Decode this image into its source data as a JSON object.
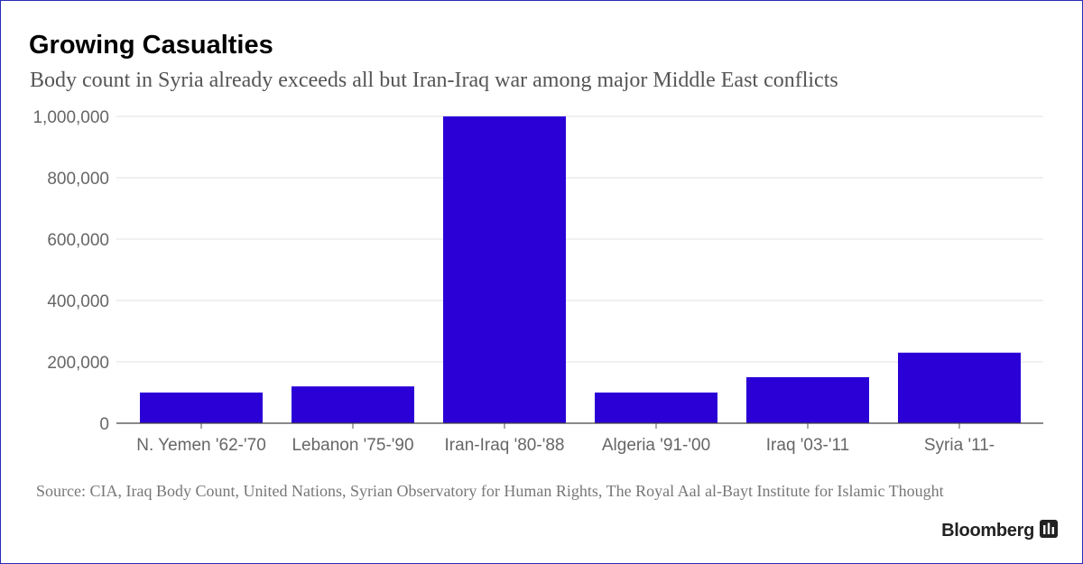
{
  "chart_data": {
    "type": "bar",
    "title": "Growing Casualties",
    "subtitle": "Body count in Syria already exceeds all but Iran-Iraq war among major Middle East conflicts",
    "categories": [
      "N. Yemen '62-'70",
      "Lebanon '75-'90",
      "Iran-Iraq '80-'88",
      "Algeria '91-'00",
      "Iraq '03-'11",
      "Syria '11-"
    ],
    "values": [
      100000,
      120000,
      1000000,
      100000,
      150000,
      230000
    ],
    "ylim": [
      0,
      1000000
    ],
    "yticks": [
      0,
      200000,
      400000,
      600000,
      800000,
      1000000
    ],
    "ytick_labels": [
      "0",
      "200,000",
      "400,000",
      "600,000",
      "800,000",
      "1,000,000"
    ],
    "xlabel": "",
    "ylabel": "",
    "grid": true,
    "bar_color": "#2a00d6"
  },
  "footer": {
    "source": "Source: CIA, Iraq Body Count, United Nations, Syrian Observatory for Human Rights, The Royal Aal al-Bayt Institute for Islamic Thought",
    "brand": "Bloomberg",
    "brand_icon": "bloomberg-chart-icon"
  }
}
